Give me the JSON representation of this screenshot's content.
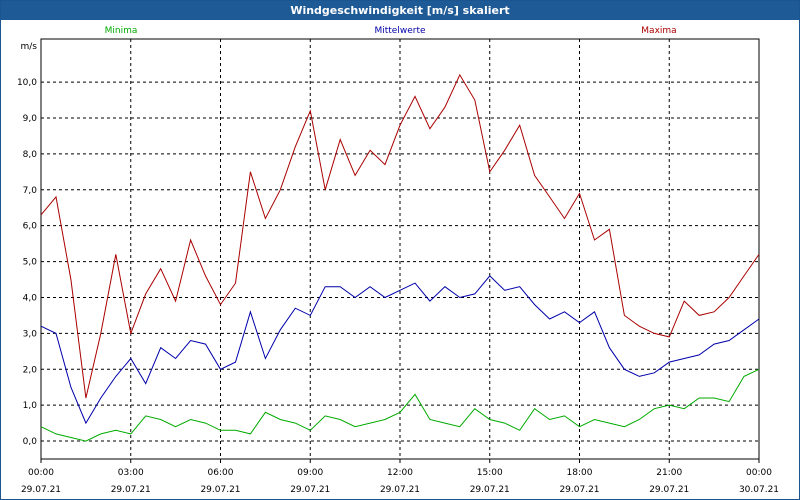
{
  "window": {
    "title": "Windgeschwindigkeit [m/s] skaliert"
  },
  "chart_data": {
    "type": "line",
    "ylabel": "m/s",
    "ylim": [
      -0.5,
      11.2
    ],
    "grid": true,
    "yticks": [
      0.0,
      1.0,
      2.0,
      3.0,
      4.0,
      5.0,
      6.0,
      7.0,
      8.0,
      9.0,
      10.0
    ],
    "ytick_labels": [
      "0,0",
      "1,0",
      "2,0",
      "3,0",
      "4,0",
      "5,0",
      "6,0",
      "7,0",
      "8,0",
      "9,0",
      "10,0"
    ],
    "xlim": [
      "29.07.21 00:00",
      "30.07.21 00:00"
    ],
    "xticks": [
      {
        "time": "00:00",
        "date": "29.07.21"
      },
      {
        "time": "03:00",
        "date": "29.07.21"
      },
      {
        "time": "06:00",
        "date": "29.07.21"
      },
      {
        "time": "09:00",
        "date": "29.07.21"
      },
      {
        "time": "12:00",
        "date": "29.07.21"
      },
      {
        "time": "15:00",
        "date": "29.07.21"
      },
      {
        "time": "18:00",
        "date": "29.07.21"
      },
      {
        "time": "21:00",
        "date": "29.07.21"
      },
      {
        "time": "00:00",
        "date": "30.07.21"
      }
    ],
    "x_hours": [
      0,
      0.5,
      1,
      1.5,
      2,
      2.5,
      3,
      3.5,
      4,
      4.5,
      5,
      5.5,
      6,
      6.5,
      7,
      7.5,
      8,
      8.5,
      9,
      9.5,
      10,
      10.5,
      11,
      11.5,
      12,
      12.5,
      13,
      13.5,
      14,
      14.5,
      15,
      15.5,
      16,
      16.5,
      17,
      17.5,
      18,
      18.5,
      19,
      19.5,
      20,
      20.5,
      21,
      21.5,
      22,
      22.5,
      23,
      23.5,
      24
    ],
    "legend_position": "top",
    "series": [
      {
        "name": "Minima",
        "color": "#00aa00",
        "values": [
          0.4,
          0.2,
          0.1,
          0.0,
          0.2,
          0.3,
          0.2,
          0.7,
          0.6,
          0.4,
          0.6,
          0.5,
          0.3,
          0.3,
          0.2,
          0.8,
          0.6,
          0.5,
          0.3,
          0.7,
          0.6,
          0.4,
          0.5,
          0.6,
          0.8,
          1.3,
          0.6,
          0.5,
          0.4,
          0.9,
          0.6,
          0.5,
          0.3,
          0.9,
          0.6,
          0.7,
          0.4,
          0.6,
          0.5,
          0.4,
          0.6,
          0.9,
          1.0,
          0.9,
          1.2,
          1.2,
          1.1,
          1.8,
          2.0
        ]
      },
      {
        "name": "Mittelwerte",
        "color": "#0000aa",
        "values": [
          3.2,
          3.0,
          1.5,
          0.5,
          1.2,
          1.8,
          2.3,
          1.6,
          2.6,
          2.3,
          2.8,
          2.7,
          2.0,
          2.2,
          3.6,
          2.3,
          3.1,
          3.7,
          3.5,
          4.3,
          4.3,
          4.0,
          4.3,
          4.0,
          4.2,
          4.4,
          3.9,
          4.3,
          4.0,
          4.1,
          4.6,
          4.2,
          4.3,
          3.8,
          3.4,
          3.6,
          3.3,
          3.6,
          2.6,
          2.0,
          1.8,
          1.9,
          2.2,
          2.3,
          2.4,
          2.7,
          2.8,
          3.1,
          3.4
        ]
      },
      {
        "name": "Maxima",
        "color": "#aa0000",
        "values": [
          6.3,
          6.8,
          4.5,
          1.2,
          3.0,
          5.2,
          3.0,
          4.1,
          4.8,
          3.9,
          5.6,
          4.6,
          3.8,
          4.4,
          7.5,
          6.2,
          7.0,
          8.2,
          9.2,
          7.0,
          8.4,
          7.4,
          8.1,
          7.7,
          8.8,
          9.6,
          8.7,
          9.3,
          10.2,
          9.5,
          7.5,
          8.1,
          8.8,
          7.4,
          6.8,
          6.2,
          6.9,
          5.6,
          5.9,
          3.5,
          3.2,
          3.0,
          2.9,
          3.9,
          3.5,
          3.6,
          4.0,
          4.6,
          5.2
        ]
      }
    ]
  }
}
